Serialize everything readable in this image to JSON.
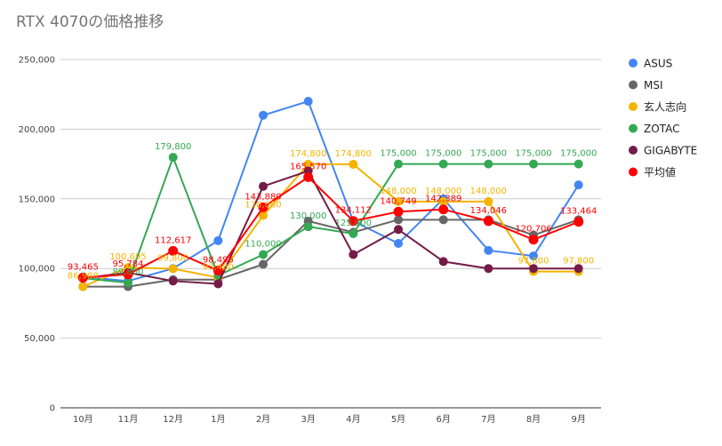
{
  "chart_data": {
    "type": "line",
    "title": "RTX 4070の価格推移",
    "xlabel": "",
    "ylabel": "",
    "categories": [
      "10月",
      "11月",
      "12月",
      "1月",
      "2月",
      "3月",
      "4月",
      "5月",
      "6月",
      "7月",
      "8月",
      "9月"
    ],
    "ylim": [
      0,
      250000
    ],
    "yticks": [
      0,
      50000,
      100000,
      150000,
      200000,
      250000
    ],
    "ytick_labels": [
      "0",
      "50,000",
      "100,000",
      "150,000",
      "200,000",
      "250,000"
    ],
    "grid": true,
    "legend_position": "right",
    "series": [
      {
        "name": "ASUS",
        "color": "#4285f4",
        "values": [
          94000,
          91000,
          100000,
          120000,
          210000,
          220000,
          134000,
          118000,
          150000,
          113000,
          109000,
          160000
        ],
        "labels": []
      },
      {
        "name": "MSI",
        "color": "#666666",
        "values": [
          87000,
          87000,
          92000,
          92000,
          103000,
          134000,
          126000,
          135000,
          135000,
          135000,
          124000,
          135000
        ],
        "labels": []
      },
      {
        "name": "玄人志向",
        "color": "#f4b400",
        "values": [
          86980,
          100695,
          99800,
          93480,
          138000,
          174800,
          174800,
          148000,
          148000,
          148000,
          97800,
          97800
        ],
        "labels": [
          "86,980",
          "100,695",
          "99,800",
          "93,480",
          "138,000",
          "174,800",
          "174,800",
          "148,000",
          "148,000",
          "148,000",
          "97,800",
          "97,800"
        ]
      },
      {
        "name": "ZOTAC",
        "color": "#34a853",
        "values": [
          93000,
          89800,
          179800,
          95000,
          110000,
          130000,
          125000,
          175000,
          175000,
          175000,
          175000,
          175000
        ],
        "labels": [
          "",
          "89,800",
          "179,800",
          "",
          "110,000",
          "130,000",
          "125,000",
          "175,000",
          "175,000",
          "175,000",
          "175,000",
          "175,000"
        ]
      },
      {
        "name": "GIGABYTE",
        "color": "#741b47",
        "values": [
          93000,
          97000,
          91000,
          89000,
          159000,
          170000,
          110000,
          128000,
          105000,
          100000,
          100000,
          100000
        ],
        "labels": []
      },
      {
        "name": "平均値",
        "color": "#ff0000",
        "values": [
          93465,
          95784,
          112617,
          98495,
          143880,
          165570,
          134112,
          140749,
          142389,
          134046,
          120706,
          133464
        ],
        "labels": [
          "93,465",
          "95,784",
          "112,617",
          "98,495",
          "143,880",
          "165,570",
          "134,112",
          "140,749",
          "142,389",
          "134,046",
          "120,706",
          "133,464"
        ]
      }
    ]
  }
}
